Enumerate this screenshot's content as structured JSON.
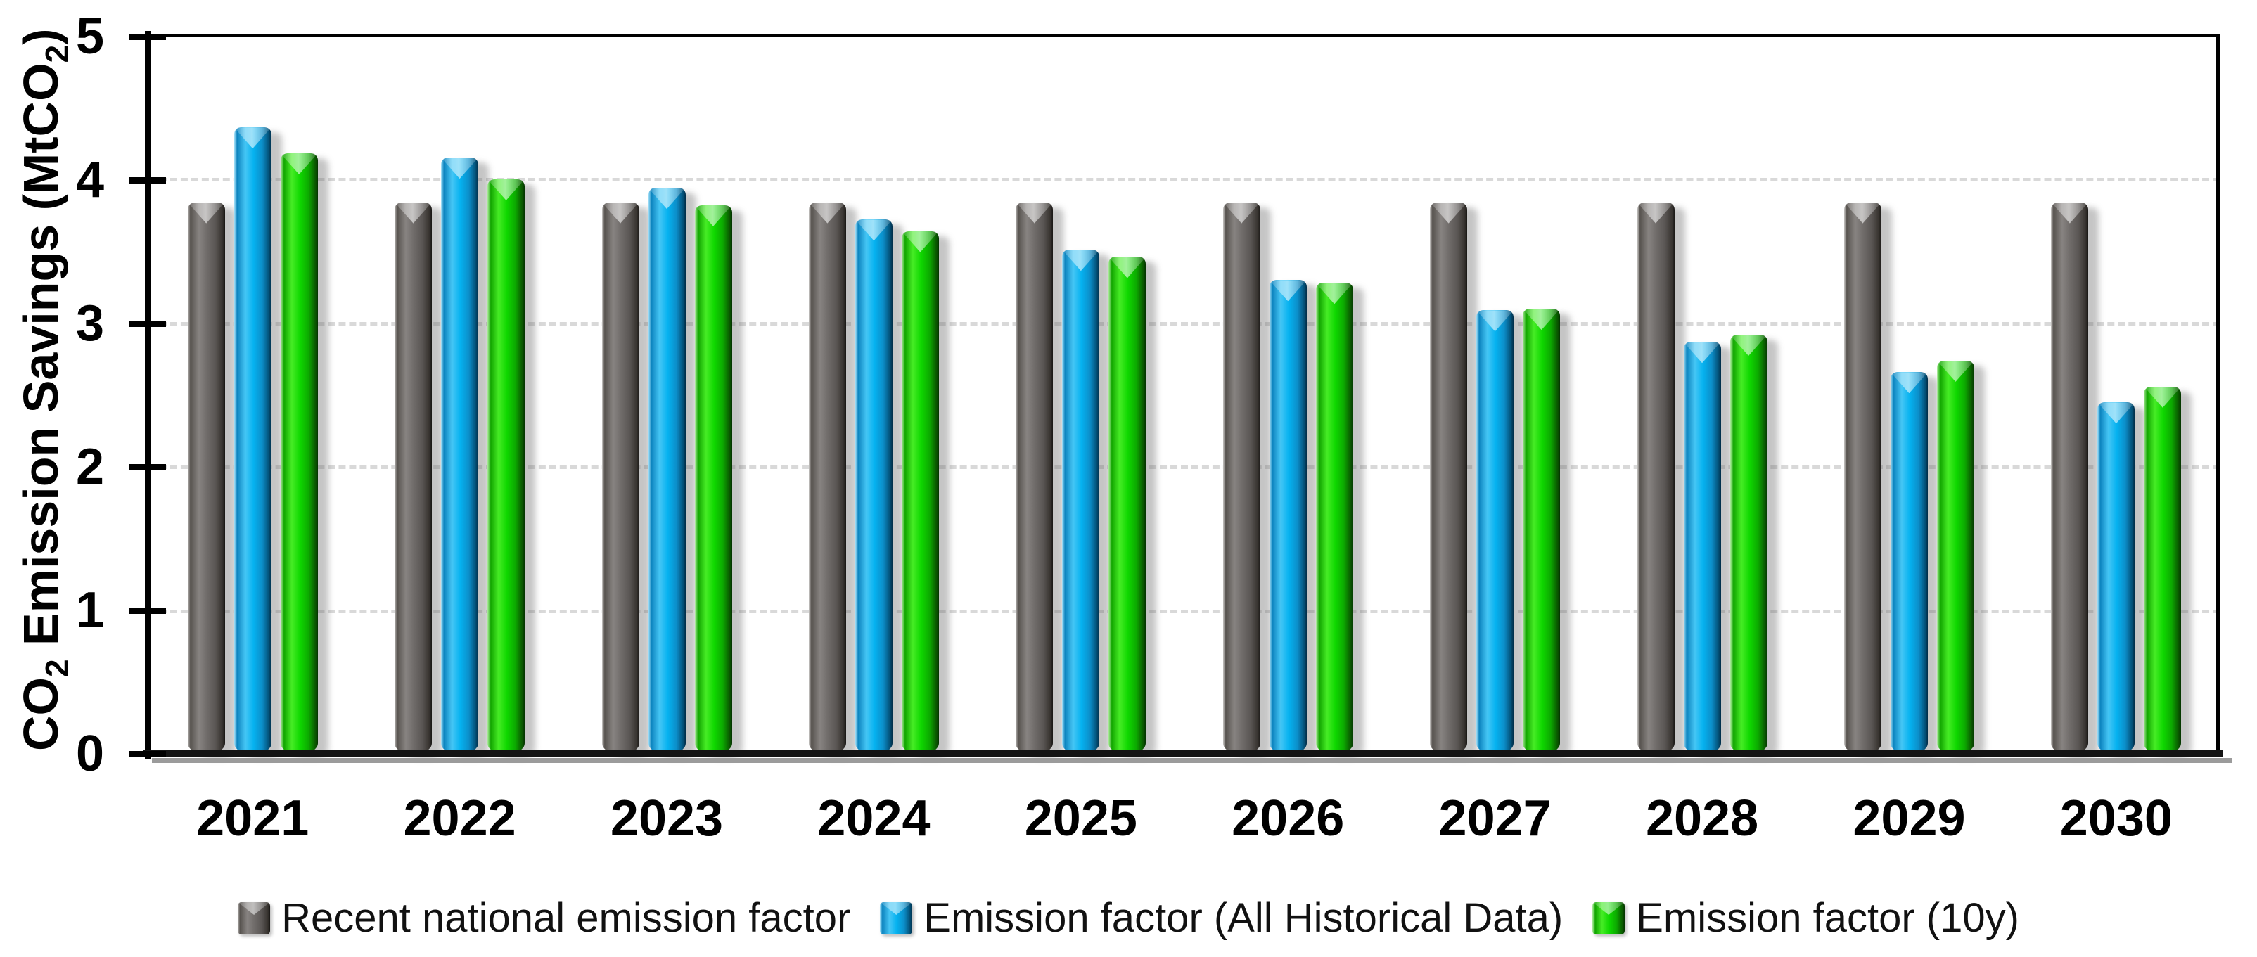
{
  "chart_data": {
    "type": "bar",
    "title": "",
    "categories": [
      "2021",
      "2022",
      "2023",
      "2024",
      "2025",
      "2026",
      "2027",
      "2028",
      "2029",
      "2030"
    ],
    "series": [
      {
        "name": "Recent national emission factor",
        "color": "#6F6B69",
        "values": [
          3.83,
          3.83,
          3.83,
          3.83,
          3.83,
          3.83,
          3.83,
          3.83,
          3.83,
          3.83
        ]
      },
      {
        "name": "Emission factor (All Historical Data)",
        "color": "#00B0F0",
        "values": [
          4.35,
          4.14,
          3.93,
          3.71,
          3.5,
          3.29,
          3.08,
          2.86,
          2.65,
          2.44
        ]
      },
      {
        "name": "Emission factor (10y)",
        "color": "#0FD800",
        "values": [
          4.17,
          3.99,
          3.81,
          3.63,
          3.45,
          3.27,
          3.09,
          2.91,
          2.73,
          2.55
        ]
      }
    ],
    "xlabel": "",
    "ylabel": "CO2 Emission Savings (MtCO2)",
    "ylim": [
      0,
      5
    ],
    "y_ticks": [
      "0",
      "1",
      "2",
      "3",
      "4",
      "5"
    ],
    "gridline_values": [
      1,
      2,
      3,
      4
    ],
    "grid": "horizontal-dashed",
    "gridline_color": "#D9D9D9",
    "axis_color": "#000000",
    "legend_position": "bottom"
  },
  "y_axis_title": {
    "pre": "CO",
    "sub1": "2",
    "mid": " Emission Savings (MtCO",
    "sub2": "2",
    "post": ")"
  }
}
